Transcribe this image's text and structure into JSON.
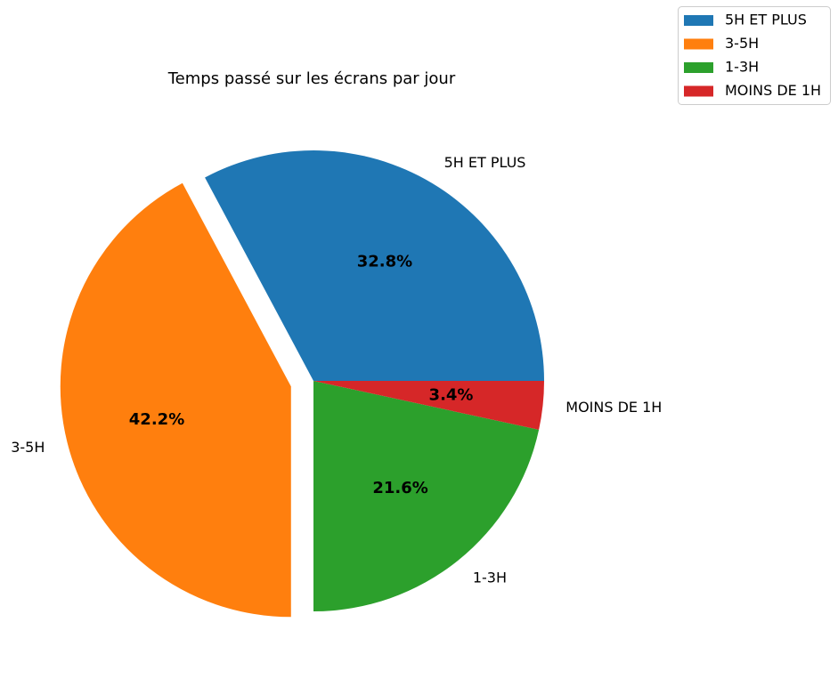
{
  "chart_data": {
    "type": "pie",
    "title": "Temps passé sur les écrans par jour",
    "categories": [
      "5H ET PLUS",
      "3-5H",
      "1-3H",
      "MOINS DE 1H"
    ],
    "values": [
      32.8,
      42.2,
      21.6,
      3.4
    ],
    "value_labels": [
      "32.8%",
      "42.2%",
      "21.6%",
      "3.4%"
    ],
    "colors": [
      "#1f77b4",
      "#ff7f0e",
      "#2ca02c",
      "#d62728"
    ],
    "exploded": [
      "3-5H"
    ],
    "start_angle_deg": 0,
    "direction": "counterclockwise",
    "legend": {
      "placement": "top-right",
      "entries": [
        "5H ET PLUS",
        "3-5H",
        "1-3H",
        "MOINS DE 1H"
      ]
    }
  }
}
